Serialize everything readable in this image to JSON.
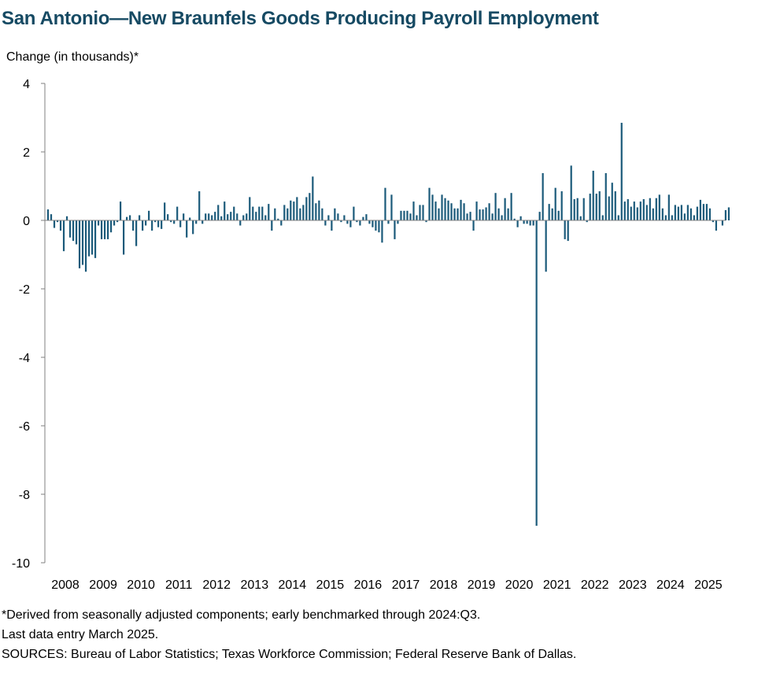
{
  "chart_data": {
    "type": "bar",
    "title": "San Antonio—New Braunfels Goods Producing Payroll Employment",
    "ylabel": "Change (in thousands)*",
    "xlabel": "",
    "ylim": [
      -10,
      4
    ],
    "yticks": [
      "4",
      "2",
      "0",
      "-2",
      "-4",
      "-6",
      "-8",
      "-10"
    ],
    "year_labels": [
      "2008",
      "2009",
      "2010",
      "2011",
      "2012",
      "2013",
      "2014",
      "2015",
      "2016",
      "2017",
      "2018",
      "2019",
      "2020",
      "2021",
      "2022",
      "2023",
      "2024",
      "2025"
    ],
    "start": "2008-01",
    "end": "2025-03",
    "color": "#1b5a7a",
    "grid": false,
    "values": [
      0.32,
      0.18,
      -0.22,
      -0.05,
      -0.3,
      -0.9,
      0.12,
      -0.5,
      -0.6,
      -0.7,
      -1.4,
      -1.3,
      -1.5,
      -1.05,
      -1.0,
      -1.1,
      -0.15,
      -0.55,
      -0.55,
      -0.55,
      -0.35,
      -0.15,
      -0.05,
      0.55,
      -1.0,
      0.1,
      0.15,
      -0.3,
      -0.75,
      0.15,
      -0.3,
      -0.15,
      0.28,
      -0.3,
      -0.05,
      -0.2,
      -0.25,
      0.52,
      0.18,
      -0.05,
      -0.1,
      0.4,
      -0.2,
      0.2,
      -0.5,
      0.08,
      -0.4,
      -0.1,
      0.85,
      -0.1,
      0.2,
      0.2,
      0.15,
      0.25,
      0.45,
      0.12,
      0.55,
      0.18,
      0.25,
      0.4,
      0.2,
      -0.15,
      0.15,
      0.2,
      0.68,
      0.4,
      0.25,
      0.4,
      0.4,
      0.15,
      0.48,
      -0.3,
      0.35,
      0.05,
      -0.15,
      0.45,
      0.35,
      0.58,
      0.55,
      0.68,
      0.35,
      0.45,
      0.68,
      0.8,
      1.28,
      0.5,
      0.58,
      0.35,
      -0.15,
      0.15,
      -0.3,
      0.35,
      0.2,
      -0.05,
      0.15,
      -0.1,
      -0.2,
      0.4,
      -0.05,
      -0.15,
      0.1,
      0.18,
      -0.1,
      -0.2,
      -0.3,
      -0.35,
      -0.65,
      0.95,
      -0.1,
      0.75,
      -0.55,
      -0.1,
      0.28,
      0.28,
      0.28,
      0.2,
      0.55,
      0.15,
      0.45,
      0.45,
      -0.05,
      0.95,
      0.75,
      0.55,
      0.35,
      0.75,
      0.65,
      0.58,
      0.5,
      0.35,
      0.35,
      0.6,
      0.5,
      0.2,
      0.25,
      -0.3,
      0.55,
      0.32,
      0.32,
      0.38,
      0.5,
      0.2,
      0.8,
      0.35,
      0.15,
      0.65,
      0.35,
      0.8,
      0.05,
      -0.2,
      0.12,
      -0.1,
      -0.1,
      -0.15,
      -0.15,
      -8.92,
      0.25,
      1.38,
      -1.5,
      0.48,
      0.35,
      0.95,
      0.28,
      0.85,
      -0.55,
      -0.6,
      1.6,
      0.62,
      0.65,
      0.12,
      0.65,
      -0.05,
      0.78,
      1.45,
      0.78,
      0.85,
      0.15,
      1.38,
      0.7,
      1.1,
      0.85,
      0.15,
      2.85,
      0.55,
      0.62,
      0.4,
      0.55,
      0.38,
      0.55,
      0.62,
      0.45,
      0.65,
      0.35,
      0.65,
      0.75,
      0.35,
      0.15,
      0.75,
      0.15,
      0.45,
      0.4,
      0.45,
      0.2,
      0.45,
      0.35,
      0.15,
      0.4,
      0.6,
      0.48,
      0.48,
      0.35,
      -0.05,
      -0.3,
      0.0,
      -0.15,
      0.3,
      0.38
    ]
  },
  "notes": {
    "footnote": "*Derived from seasonally adjusted components; early benchmarked through 2024:Q3.",
    "last_entry": "Last data entry March 2025.",
    "sources": "SOURCES: Bureau of Labor Statistics; Texas Workforce Commission; Federal Reserve Bank of Dallas."
  }
}
